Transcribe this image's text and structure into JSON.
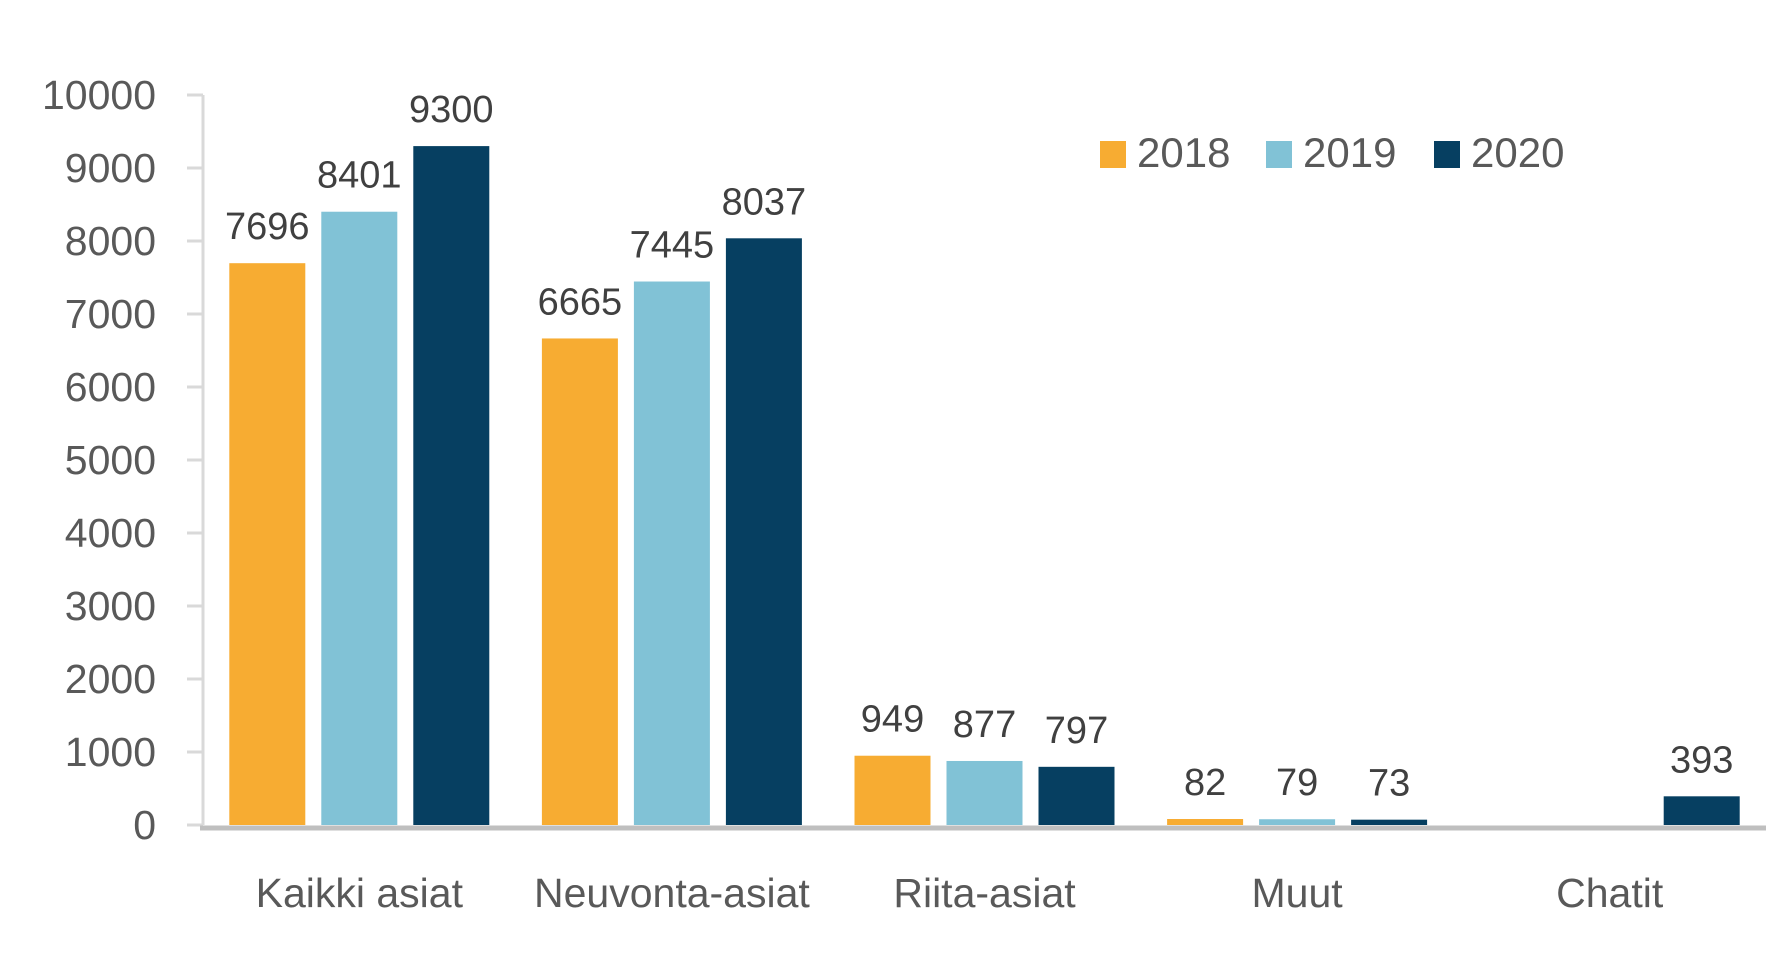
{
  "chart_data": {
    "type": "bar",
    "title": "",
    "xlabel": "",
    "ylabel": "",
    "categories": [
      "Kaikki asiat",
      "Neuvonta-asiat",
      "Riita-asiat",
      "Muut",
      "Chatit"
    ],
    "series": [
      {
        "name": "2018",
        "color": "#F7AC32",
        "values": [
          7696,
          6665,
          949,
          82,
          null
        ]
      },
      {
        "name": "2019",
        "color": "#81C2D6",
        "values": [
          8401,
          7445,
          877,
          79,
          null
        ]
      },
      {
        "name": "2020",
        "color": "#063F61",
        "values": [
          9300,
          8037,
          797,
          73,
          393
        ]
      }
    ],
    "ylim": [
      0,
      10000
    ],
    "yticks": [
      0,
      1000,
      2000,
      3000,
      4000,
      5000,
      6000,
      7000,
      8000,
      9000,
      10000
    ],
    "grid": false,
    "legend_position": "top-right",
    "data_labels": true
  }
}
